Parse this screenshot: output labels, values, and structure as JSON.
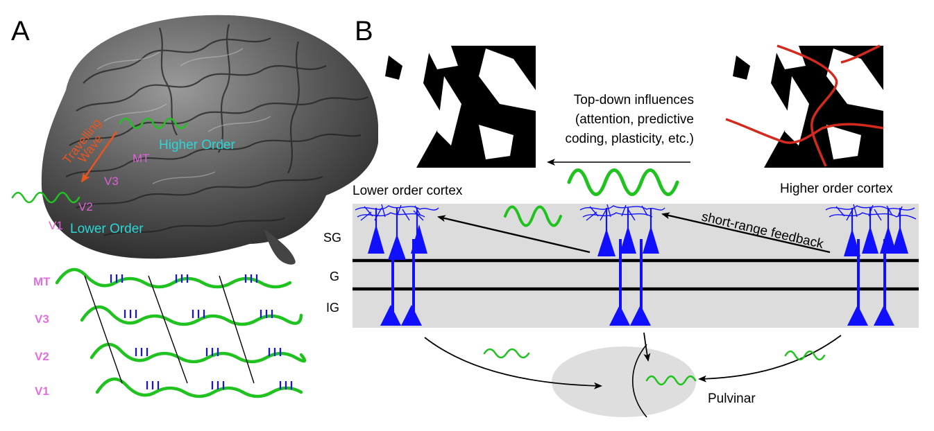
{
  "panel_a": {
    "letter": "A",
    "brain_labels": {
      "higher_order": "Higher Order",
      "lower_order": "Lower Order",
      "mt": "MT",
      "v3": "V3",
      "v2": "V2",
      "v1": "V1",
      "travelling": "Travelling",
      "wave": "Wave"
    },
    "rows": [
      "MT",
      "V3",
      "V2",
      "V1"
    ],
    "colors": {
      "area": "#e060d8",
      "order": "#2ad6d6",
      "arrow": "#e8551e",
      "wave": "#1fc21f",
      "spikes": "#1010ff"
    }
  },
  "panel_b": {
    "letter": "B",
    "topdown": [
      "Top-down influences",
      "(attention, predictive",
      "coding, plasticity, etc.)"
    ],
    "lower_cortex": "Lower order cortex",
    "higher_cortex": "Higher order cortex",
    "feedback": "short-range feedback",
    "layers": [
      "SG",
      "G",
      "IG"
    ],
    "pulvinar": "Pulvinar",
    "colors": {
      "neuron": "#1010ff",
      "boundary": "#d42a1e",
      "cortex_bg": "#dcdcdc"
    }
  }
}
